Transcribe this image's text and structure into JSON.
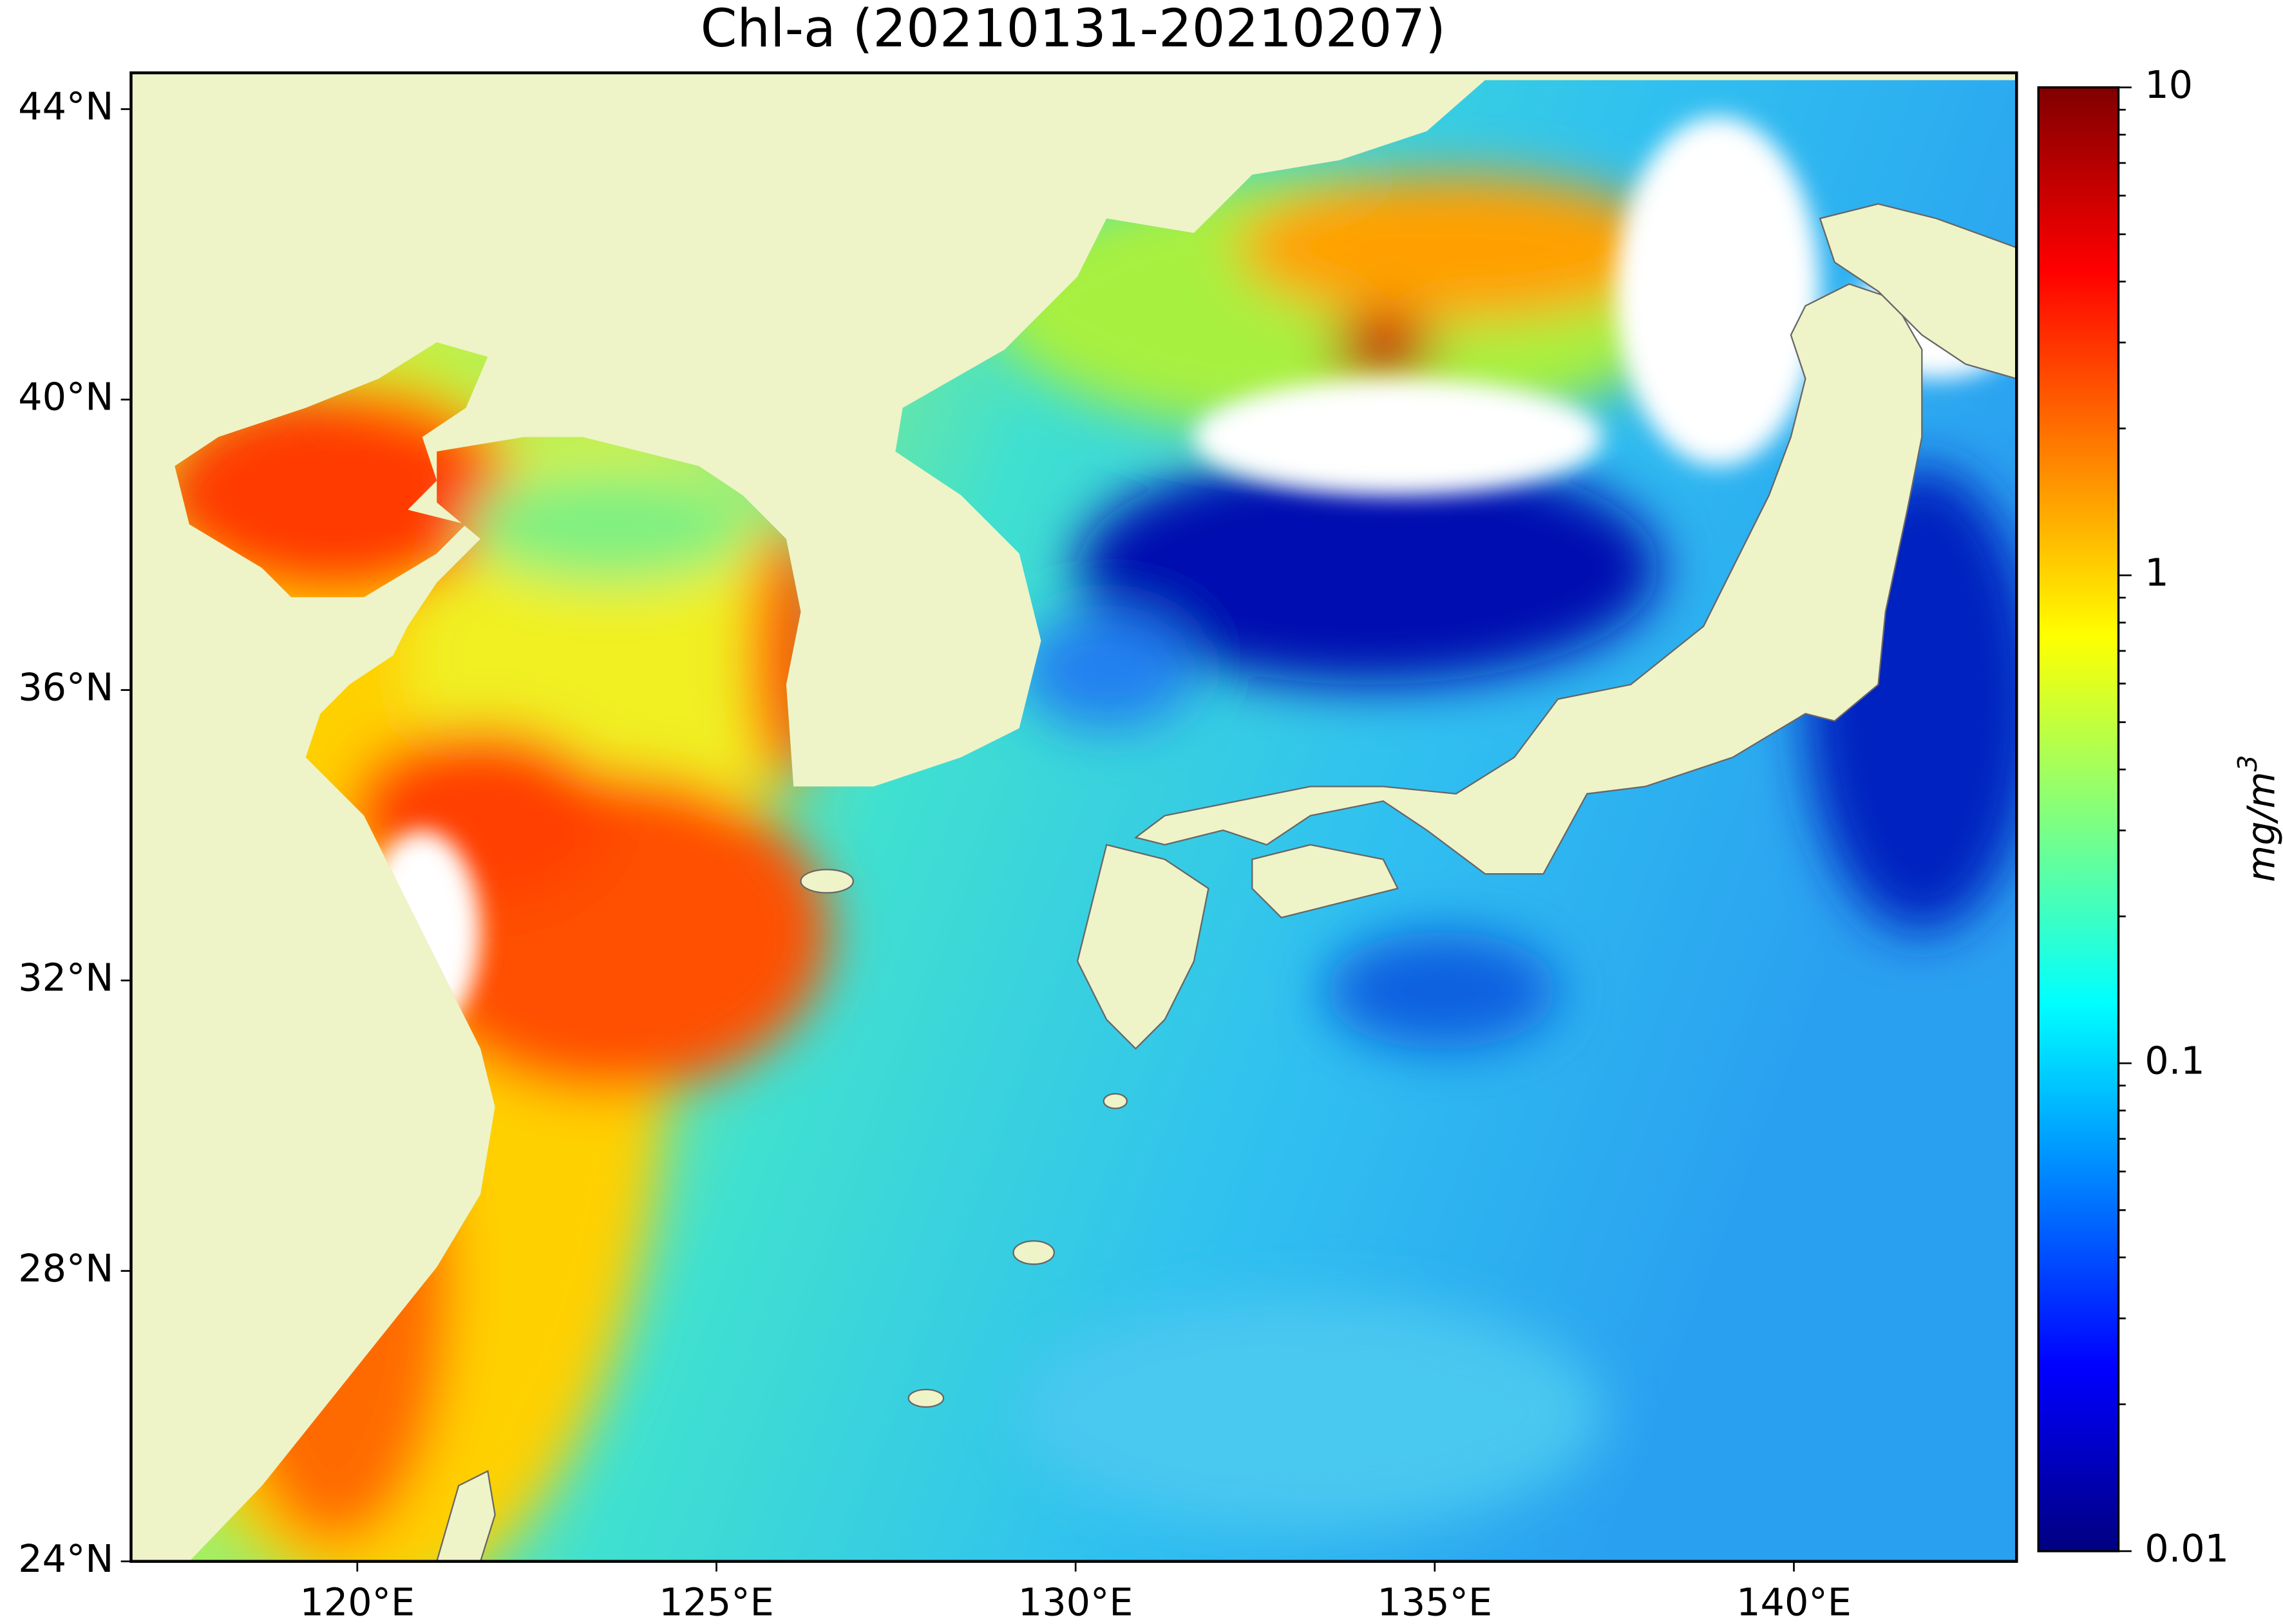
{
  "map": {
    "title": "Chl-a (20210131-20210207)",
    "xlim": [
      116.85,
      143.1
    ],
    "ylim": [
      24,
      44.5
    ],
    "xticks": [
      {
        "value": 120,
        "label": "120°E"
      },
      {
        "value": 125,
        "label": "125°E"
      },
      {
        "value": 130,
        "label": "130°E"
      },
      {
        "value": 135,
        "label": "135°E"
      },
      {
        "value": 140,
        "label": "140°E"
      }
    ],
    "yticks": [
      {
        "value": 24,
        "label": "24°N"
      },
      {
        "value": 28,
        "label": "28°N"
      },
      {
        "value": 32,
        "label": "32°N"
      },
      {
        "value": 36,
        "label": "36°N"
      },
      {
        "value": 40,
        "label": "40°N"
      },
      {
        "value": 44,
        "label": "44°N"
      }
    ],
    "colorbar": {
      "scale": "log",
      "lim": [
        0.01,
        10
      ],
      "ticks": [
        0.01,
        0.1,
        1,
        10
      ],
      "minor_ticks": [
        0.02,
        0.03,
        0.04,
        0.05,
        0.06,
        0.07,
        0.08,
        0.09,
        0.2,
        0.3,
        0.4,
        0.5,
        0.6,
        0.7,
        0.8,
        0.9,
        2,
        3,
        4,
        5,
        6,
        7,
        8,
        9
      ],
      "label": "mg/m",
      "label_superscript": "3"
    }
  }
}
